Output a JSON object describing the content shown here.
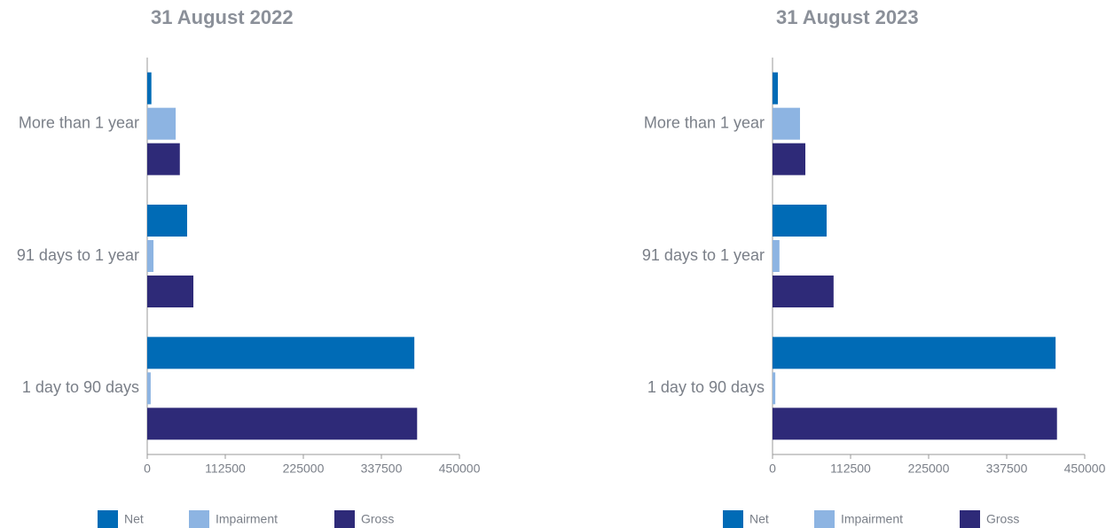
{
  "chart_data": [
    {
      "type": "bar",
      "orientation": "horizontal",
      "title": "31 August 2022",
      "categories": [
        "More than 1 year",
        "91 days to 1 year",
        "1 day to 90 days"
      ],
      "series": [
        {
          "name": "Net",
          "color": "#006bb6",
          "values": [
            6000,
            57500,
            385000
          ]
        },
        {
          "name": "Impairment",
          "color": "#8db4e2",
          "values": [
            41000,
            9000,
            5000
          ]
        },
        {
          "name": "Gross",
          "color": "#2e2a78",
          "values": [
            47000,
            66500,
            389000
          ]
        }
      ],
      "xlim": [
        0,
        450000
      ],
      "xticks": [
        0,
        112500,
        225000,
        337500,
        450000
      ]
    },
    {
      "type": "bar",
      "orientation": "horizontal",
      "title": "31 August 2023",
      "categories": [
        "More than 1 year",
        "91 days to 1 year",
        "1 day to 90 days"
      ],
      "series": [
        {
          "name": "Net",
          "color": "#006bb6",
          "values": [
            7700,
            78000,
            408000
          ]
        },
        {
          "name": "Impairment",
          "color": "#8db4e2",
          "values": [
            39600,
            10000,
            4000
          ]
        },
        {
          "name": "Gross",
          "color": "#2e2a78",
          "values": [
            47300,
            88000,
            410000
          ]
        }
      ],
      "xlim": [
        0,
        450000
      ],
      "xticks": [
        0,
        112500,
        225000,
        337500,
        450000
      ]
    }
  ]
}
